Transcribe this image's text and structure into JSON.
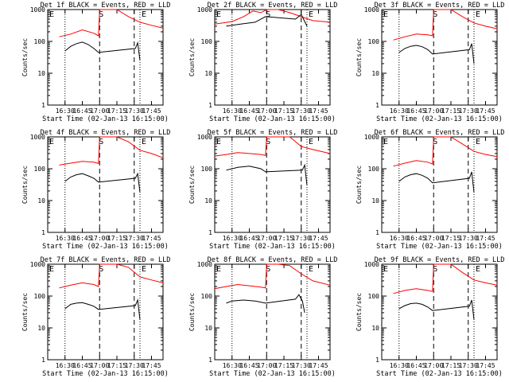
{
  "chart_data": {
    "type": "line",
    "x_range": [
      "16:15",
      "17:55"
    ],
    "y_scale": "log",
    "y_range": [
      1,
      1000
    ],
    "ylabel": "Counts/sec",
    "xlabel": "Start Time (02-Jan-13 16:15:00)",
    "x_ticks": [
      "16:30",
      "16:45",
      "17:00",
      "17:15",
      "17:30",
      "17:45"
    ],
    "y_ticks": [
      "1",
      "10",
      "100",
      "1000"
    ],
    "colors": {
      "events": "#000000",
      "lld": "#ff0000",
      "axes": "#000000"
    },
    "dotted_marker_times": [
      "16:30",
      "17:35"
    ],
    "dashed_marker_times": [
      "17:00",
      "17:30"
    ],
    "marker_labels": {
      "start_edge": "E",
      "mid": "S",
      "late": "E"
    },
    "panels": [
      {
        "title": "Det 1f BLACK = Events, RED = LLD",
        "events": {
          "t": [
            "16:30",
            "16:35",
            "16:40",
            "16:45",
            "16:50",
            "16:55",
            "16:59",
            "17:31",
            "17:33",
            "17:35"
          ],
          "v": [
            50,
            70,
            85,
            95,
            80,
            60,
            45,
            60,
            90,
            25
          ]
        },
        "lld": {
          "t": [
            "16:25",
            "16:35",
            "16:45",
            "16:55",
            "16:59",
            "17:00",
            "17:05",
            "17:15",
            "17:25",
            "17:35",
            "17:45",
            "17:55"
          ],
          "v": [
            140,
            170,
            230,
            180,
            150,
            1000,
            1000,
            1000,
            600,
            400,
            320,
            260
          ]
        }
      },
      {
        "title": "Det 2f BLACK = Events, RED = LLD",
        "events": {
          "t": [
            "16:25",
            "16:30",
            "16:40",
            "16:50",
            "16:59",
            "17:25",
            "17:30",
            "17:35"
          ],
          "v": [
            300,
            320,
            360,
            400,
            600,
            500,
            700,
            300
          ]
        },
        "lld": {
          "t": [
            "16:15",
            "16:30",
            "16:40",
            "16:48",
            "16:55",
            "17:00",
            "17:10",
            "17:20",
            "17:30",
            "17:40",
            "17:55"
          ],
          "v": [
            350,
            420,
            600,
            900,
            800,
            1000,
            1000,
            800,
            600,
            450,
            400
          ]
        }
      },
      {
        "title": "Det 3f BLACK = Events, RED = LLD",
        "events": {
          "t": [
            "16:30",
            "16:35",
            "16:40",
            "16:45",
            "16:50",
            "16:55",
            "16:59",
            "17:31",
            "17:33",
            "17:35"
          ],
          "v": [
            45,
            60,
            70,
            75,
            68,
            55,
            40,
            55,
            85,
            20
          ]
        },
        "lld": {
          "t": [
            "16:25",
            "16:35",
            "16:45",
            "16:55",
            "16:59",
            "17:00",
            "17:05",
            "17:15",
            "17:25",
            "17:35",
            "17:45",
            "17:55"
          ],
          "v": [
            110,
            140,
            170,
            160,
            150,
            1000,
            1000,
            1000,
            600,
            380,
            300,
            250
          ]
        }
      },
      {
        "title": "Det 4f BLACK = Events, RED = LLD",
        "events": {
          "t": [
            "16:30",
            "16:35",
            "16:40",
            "16:45",
            "16:50",
            "16:55",
            "16:59",
            "17:31",
            "17:33",
            "17:35"
          ],
          "v": [
            40,
            55,
            65,
            70,
            60,
            50,
            38,
            50,
            70,
            18
          ]
        },
        "lld": {
          "t": [
            "16:25",
            "16:35",
            "16:45",
            "16:55",
            "16:59",
            "17:00",
            "17:05",
            "17:15",
            "17:25",
            "17:35",
            "17:45",
            "17:55"
          ],
          "v": [
            130,
            150,
            170,
            160,
            145,
            1000,
            1000,
            1000,
            700,
            380,
            300,
            220
          ]
        }
      },
      {
        "title": "Det 5f BLACK = Events, RED = LLD",
        "events": {
          "t": [
            "16:25",
            "16:35",
            "16:45",
            "16:55",
            "16:59",
            "17:31",
            "17:33",
            "17:35"
          ],
          "v": [
            90,
            110,
            120,
            100,
            80,
            90,
            130,
            30
          ]
        },
        "lld": {
          "t": [
            "16:15",
            "16:25",
            "16:35",
            "16:45",
            "16:55",
            "16:59",
            "17:00",
            "17:10",
            "17:20",
            "17:30",
            "17:40",
            "17:55"
          ],
          "v": [
            250,
            280,
            320,
            300,
            280,
            260,
            1000,
            1000,
            1000,
            500,
            400,
            300
          ]
        }
      },
      {
        "title": "Det 6f BLACK = Events, RED = LLD",
        "events": {
          "t": [
            "16:30",
            "16:35",
            "16:40",
            "16:45",
            "16:50",
            "16:55",
            "16:59",
            "17:31",
            "17:33",
            "17:35"
          ],
          "v": [
            40,
            55,
            65,
            70,
            62,
            50,
            36,
            50,
            80,
            18
          ]
        },
        "lld": {
          "t": [
            "16:25",
            "16:35",
            "16:45",
            "16:55",
            "16:59",
            "17:00",
            "17:05",
            "17:15",
            "17:25",
            "17:35",
            "17:45",
            "17:55"
          ],
          "v": [
            120,
            150,
            180,
            160,
            140,
            1000,
            1000,
            1000,
            600,
            350,
            280,
            240
          ]
        }
      },
      {
        "title": "Det 7f BLACK = Events, RED = LLD",
        "events": {
          "t": [
            "16:30",
            "16:35",
            "16:40",
            "16:45",
            "16:50",
            "16:55",
            "16:59",
            "17:31",
            "17:33",
            "17:35"
          ],
          "v": [
            40,
            55,
            60,
            62,
            55,
            48,
            38,
            50,
            75,
            18
          ]
        },
        "lld": {
          "t": [
            "16:25",
            "16:35",
            "16:45",
            "16:55",
            "16:59",
            "17:00",
            "17:05",
            "17:15",
            "17:25",
            "17:35",
            "17:45",
            "17:55"
          ],
          "v": [
            180,
            220,
            260,
            230,
            200,
            1000,
            1000,
            1000,
            800,
            400,
            320,
            260
          ]
        }
      },
      {
        "title": "Det 8f BLACK = Events, RED = LLD",
        "events": {
          "t": [
            "16:25",
            "16:30",
            "16:40",
            "16:50",
            "16:59",
            "17:25",
            "17:28",
            "17:31",
            "17:33"
          ],
          "v": [
            60,
            70,
            75,
            70,
            60,
            80,
            110,
            70,
            30
          ]
        },
        "lld": {
          "t": [
            "16:15",
            "16:25",
            "16:35",
            "16:45",
            "16:55",
            "16:59",
            "17:00",
            "17:10",
            "17:20",
            "17:30",
            "17:40",
            "17:55"
          ],
          "v": [
            170,
            200,
            230,
            210,
            190,
            180,
            1000,
            1000,
            900,
            500,
            300,
            220
          ]
        }
      },
      {
        "title": "Det 9f BLACK = Events, RED = LLD",
        "events": {
          "t": [
            "16:30",
            "16:35",
            "16:40",
            "16:45",
            "16:50",
            "16:55",
            "16:59",
            "17:31",
            "17:33",
            "17:35"
          ],
          "v": [
            40,
            50,
            58,
            60,
            55,
            45,
            35,
            48,
            75,
            18
          ]
        },
        "lld": {
          "t": [
            "16:25",
            "16:35",
            "16:45",
            "16:55",
            "16:59",
            "17:00",
            "17:05",
            "17:15",
            "17:25",
            "17:35",
            "17:45",
            "17:55"
          ],
          "v": [
            120,
            150,
            170,
            150,
            140,
            1000,
            1000,
            1000,
            550,
            320,
            260,
            220
          ]
        }
      }
    ]
  }
}
